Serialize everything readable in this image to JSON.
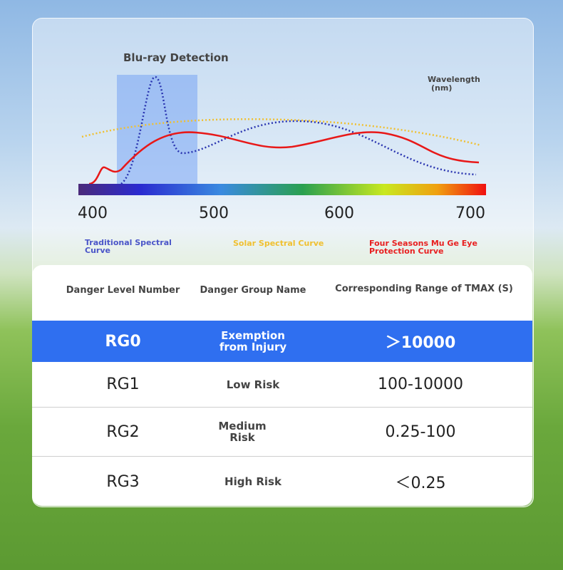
{
  "spectrum": {
    "title": "Blu-ray Detection",
    "axis_label": [
      "Wavelength",
      "(nm)"
    ],
    "ticks": [
      400,
      500,
      600,
      700
    ],
    "legend": [
      "Traditional Spectral Curve",
      "Solar Spectral Curve",
      "Four Seasons Mu Ge Eye Protection Curve"
    ]
  },
  "table": {
    "headers": [
      "Danger Level Number",
      "Danger Group Name",
      "Corresponding Range of TMAX (S)"
    ],
    "rows": [
      [
        "RG0",
        "Exemption from Injury",
        "＞10000"
      ],
      [
        "RG1",
        "Low Risk",
        "100-10000"
      ],
      [
        "RG2",
        "Medium Risk",
        "0.25-100"
      ],
      [
        "RG3",
        "High Risk",
        "＜0.25"
      ]
    ]
  }
}
